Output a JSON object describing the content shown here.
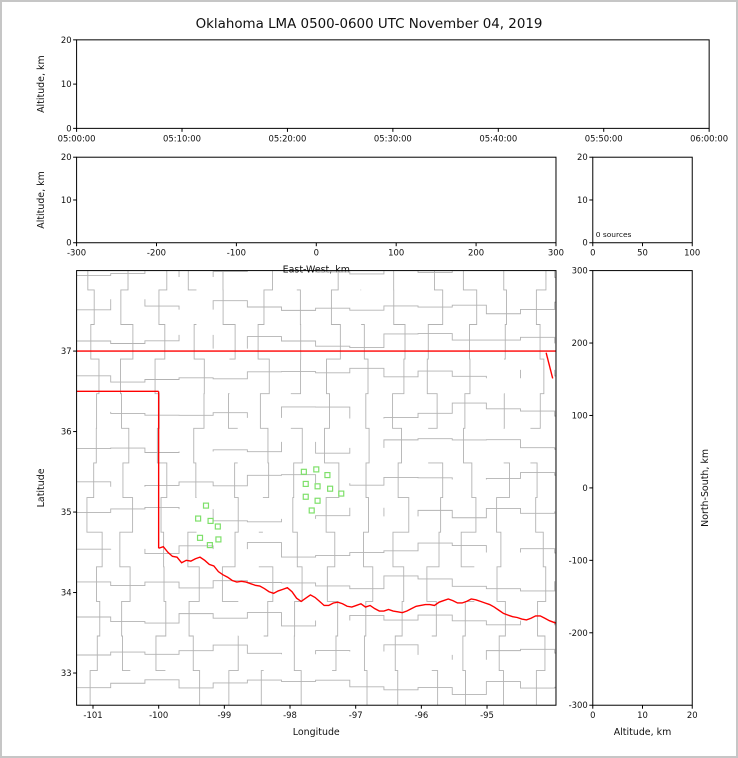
{
  "figure": {
    "title": "Oklahoma LMA 0500-0600 UTC November 04, 2019"
  },
  "colors": {
    "axis": "#000000",
    "county_line": "#b3b3b3",
    "state_border": "#ff0000",
    "station_marker": "#7ee06a"
  },
  "chart_data": [
    {
      "id": "time_height",
      "name": "Time vs Altitude panel",
      "type": "scatter",
      "xlabel": "",
      "ylabel": "Altitude, km",
      "xtick_labels": [
        "05:00:00",
        "05:10:00",
        "05:20:00",
        "05:30:00",
        "05:40:00",
        "05:50:00",
        "06:00:00"
      ],
      "ylim": [
        0,
        20
      ],
      "yticks": [
        0,
        10,
        20
      ],
      "points": []
    },
    {
      "id": "ew_height",
      "name": "East-West vs Altitude panel",
      "type": "scatter",
      "xlabel": "East-West, km",
      "ylabel": "Altitude, km",
      "xlim": [
        -300,
        300
      ],
      "xticks": [
        -300,
        -200,
        -100,
        0,
        100,
        200,
        300
      ],
      "ylim": [
        0,
        20
      ],
      "yticks": [
        0,
        10,
        20
      ],
      "points": []
    },
    {
      "id": "alt_histogram",
      "name": "Source count histogram panel",
      "type": "line",
      "xlabel": "",
      "ylabel": "",
      "xlim": [
        0,
        100
      ],
      "xticks": [
        0,
        50,
        100
      ],
      "ylim": [
        0,
        20
      ],
      "yticks": [
        0,
        10,
        20
      ],
      "annotation": "0 sources",
      "points": []
    },
    {
      "id": "plan_view",
      "name": "Plan view map panel",
      "type": "scatter",
      "xlabel": "Longitude",
      "ylabel": "Latitude",
      "xlim": [
        -101.25,
        -93.95
      ],
      "xticks": [
        -101,
        -100,
        -99,
        -98,
        -97,
        -96,
        -95
      ],
      "ylim": [
        32.6,
        38.0
      ],
      "yticks": [
        33,
        34,
        35,
        36,
        37
      ],
      "stations": [
        [
          -99.28,
          35.08
        ],
        [
          -99.4,
          34.92
        ],
        [
          -99.21,
          34.89
        ],
        [
          -99.1,
          34.82
        ],
        [
          -99.37,
          34.68
        ],
        [
          -99.22,
          34.59
        ],
        [
          -99.09,
          34.66
        ],
        [
          -97.79,
          35.5
        ],
        [
          -97.6,
          35.53
        ],
        [
          -97.43,
          35.46
        ],
        [
          -97.76,
          35.35
        ],
        [
          -97.58,
          35.32
        ],
        [
          -97.39,
          35.29
        ],
        [
          -97.76,
          35.19
        ],
        [
          -97.58,
          35.14
        ],
        [
          -97.22,
          35.23
        ],
        [
          -97.67,
          35.02
        ]
      ],
      "state_border_segments": [
        [
          [
            -101.25,
            37.0
          ],
          [
            -93.95,
            37.0
          ]
        ],
        [
          [
            -101.25,
            36.5
          ],
          [
            -100.0,
            36.5
          ]
        ],
        [
          [
            -100.0,
            36.5
          ],
          [
            -100.0,
            34.55
          ]
        ],
        [
          [
            -94.1,
            36.98
          ],
          [
            -94.0,
            36.66
          ]
        ]
      ],
      "red_river": [
        [
          -100.0,
          34.55
        ],
        [
          -99.93,
          34.57
        ],
        [
          -99.86,
          34.5
        ],
        [
          -99.79,
          34.45
        ],
        [
          -99.72,
          34.44
        ],
        [
          -99.65,
          34.37
        ],
        [
          -99.58,
          34.4
        ],
        [
          -99.51,
          34.39
        ],
        [
          -99.44,
          34.42
        ],
        [
          -99.37,
          34.44
        ],
        [
          -99.3,
          34.4
        ],
        [
          -99.23,
          34.35
        ],
        [
          -99.16,
          34.33
        ],
        [
          -99.09,
          34.26
        ],
        [
          -99.02,
          34.22
        ],
        [
          -98.95,
          34.19
        ],
        [
          -98.88,
          34.15
        ],
        [
          -98.81,
          34.13
        ],
        [
          -98.74,
          34.14
        ],
        [
          -98.67,
          34.13
        ],
        [
          -98.6,
          34.11
        ],
        [
          -98.53,
          34.09
        ],
        [
          -98.46,
          34.08
        ],
        [
          -98.39,
          34.05
        ],
        [
          -98.32,
          34.01
        ],
        [
          -98.25,
          33.99
        ],
        [
          -98.18,
          34.02
        ],
        [
          -98.11,
          34.04
        ],
        [
          -98.04,
          34.06
        ],
        [
          -97.97,
          34.01
        ],
        [
          -97.9,
          33.93
        ],
        [
          -97.83,
          33.89
        ],
        [
          -97.76,
          33.93
        ],
        [
          -97.69,
          33.97
        ],
        [
          -97.62,
          33.94
        ],
        [
          -97.55,
          33.89
        ],
        [
          -97.48,
          33.84
        ],
        [
          -97.41,
          33.84
        ],
        [
          -97.34,
          33.87
        ],
        [
          -97.27,
          33.88
        ],
        [
          -97.2,
          33.86
        ],
        [
          -97.13,
          33.83
        ],
        [
          -97.06,
          33.82
        ],
        [
          -96.99,
          33.84
        ],
        [
          -96.92,
          33.86
        ],
        [
          -96.85,
          33.82
        ],
        [
          -96.78,
          33.84
        ],
        [
          -96.71,
          33.8
        ],
        [
          -96.64,
          33.77
        ],
        [
          -96.57,
          33.77
        ],
        [
          -96.5,
          33.79
        ],
        [
          -96.43,
          33.77
        ],
        [
          -96.36,
          33.76
        ],
        [
          -96.29,
          33.75
        ],
        [
          -96.22,
          33.77
        ],
        [
          -96.15,
          33.8
        ],
        [
          -96.08,
          33.83
        ],
        [
          -96.01,
          33.84
        ],
        [
          -95.94,
          33.85
        ],
        [
          -95.87,
          33.85
        ],
        [
          -95.8,
          33.84
        ],
        [
          -95.73,
          33.88
        ],
        [
          -95.66,
          33.9
        ],
        [
          -95.59,
          33.92
        ],
        [
          -95.52,
          33.9
        ],
        [
          -95.45,
          33.87
        ],
        [
          -95.38,
          33.87
        ],
        [
          -95.31,
          33.89
        ],
        [
          -95.24,
          33.92
        ],
        [
          -95.17,
          33.91
        ],
        [
          -95.1,
          33.89
        ],
        [
          -95.03,
          33.87
        ],
        [
          -94.96,
          33.85
        ],
        [
          -94.89,
          33.82
        ],
        [
          -94.82,
          33.78
        ],
        [
          -94.75,
          33.74
        ],
        [
          -94.68,
          33.72
        ],
        [
          -94.61,
          33.7
        ],
        [
          -94.54,
          33.69
        ],
        [
          -94.47,
          33.67
        ],
        [
          -94.4,
          33.66
        ],
        [
          -94.33,
          33.68
        ],
        [
          -94.26,
          33.71
        ],
        [
          -94.19,
          33.71
        ],
        [
          -94.12,
          33.68
        ],
        [
          -94.05,
          33.65
        ],
        [
          -93.95,
          33.62
        ]
      ]
    },
    {
      "id": "ns_height",
      "name": "Altitude vs North-South panel",
      "type": "scatter",
      "xlabel": "Altitude, km",
      "ylabel": "North-South, km",
      "xlim": [
        0,
        20
      ],
      "xticks": [
        0,
        10,
        20
      ],
      "ylim": [
        -300,
        300
      ],
      "yticks": [
        -300,
        -200,
        -100,
        0,
        100,
        200,
        300
      ],
      "points": []
    }
  ]
}
